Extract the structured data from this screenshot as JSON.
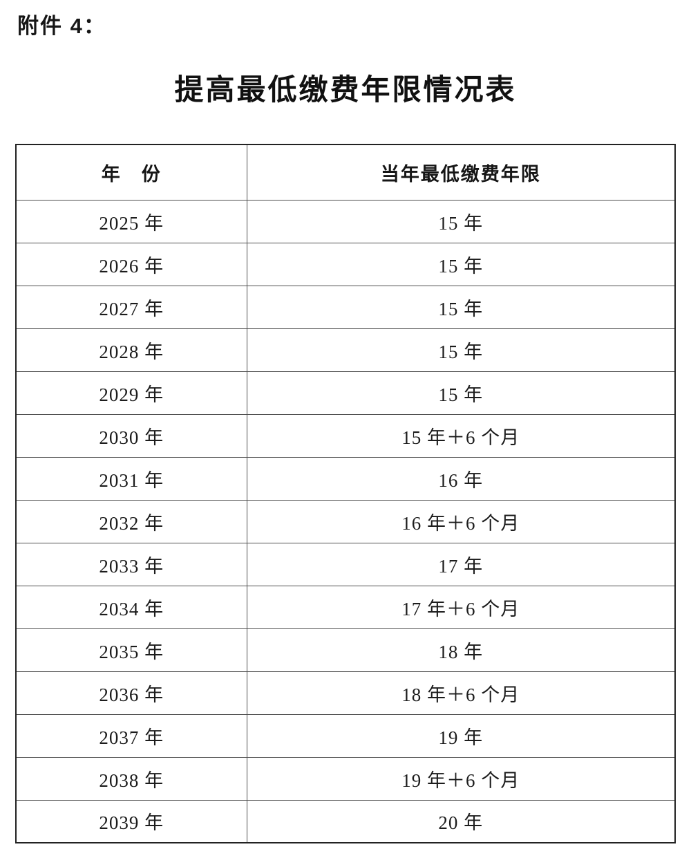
{
  "page": {
    "attachment_label": "附件 4：",
    "title": "提高最低缴费年限情况表"
  },
  "table": {
    "headers": {
      "year": "年　份",
      "min_years": "当年最低缴费年限"
    },
    "rows": [
      {
        "year": "2025 年",
        "value": "15 年"
      },
      {
        "year": "2026 年",
        "value": "15 年"
      },
      {
        "year": "2027 年",
        "value": "15 年"
      },
      {
        "year": "2028 年",
        "value": "15 年"
      },
      {
        "year": "2029 年",
        "value": "15 年"
      },
      {
        "year": "2030 年",
        "value": "15 年＋6 个月"
      },
      {
        "year": "2031 年",
        "value": "16 年"
      },
      {
        "year": "2032 年",
        "value": "16 年＋6 个月"
      },
      {
        "year": "2033 年",
        "value": "17 年"
      },
      {
        "year": "2034 年",
        "value": "17 年＋6 个月"
      },
      {
        "year": "2035 年",
        "value": "18 年"
      },
      {
        "year": "2036 年",
        "value": "18 年＋6 个月"
      },
      {
        "year": "2037 年",
        "value": "19 年"
      },
      {
        "year": "2038 年",
        "value": "19 年＋6 个月"
      },
      {
        "year": "2039 年",
        "value": "20 年"
      }
    ]
  },
  "colors": {
    "background": "#ffffff",
    "text": "#1c1c1c",
    "border_outer": "#222222",
    "border_inner": "#4d4d4d"
  }
}
